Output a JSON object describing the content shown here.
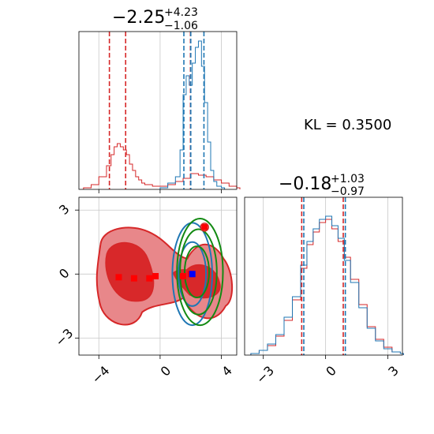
{
  "colors": {
    "red": "#d62728",
    "blue": "#1f77b4",
    "green": "#138a13",
    "red_fill": "#e8878a",
    "red_dark": "#d8282a",
    "grid": "#c8c8c8"
  },
  "chart_data": [
    {
      "type": "histogram",
      "panel": "top-left",
      "title_main": "−2.25",
      "title_sup": "+4.23",
      "title_sub": "−1.06",
      "xlim": [
        -5.3,
        5.0
      ],
      "quantiles": {
        "red": [
          -3.31,
          -2.25,
          1.98
        ],
        "blue": [
          1.55,
          2.0,
          2.86
        ]
      },
      "series": [
        {
          "color": "red",
          "x": [
            -5.0,
            -4.5,
            -4.0,
            -3.5,
            -3.2,
            -3.0,
            -2.8,
            -2.6,
            -2.4,
            -2.2,
            -2.0,
            -1.8,
            -1.6,
            -1.4,
            -1.2,
            -1.0,
            -0.5,
            0.0,
            0.5,
            1.0,
            1.5,
            2.0,
            2.5,
            3.0,
            3.5,
            4.0,
            4.5,
            5.0
          ],
          "y": [
            0.01,
            0.03,
            0.08,
            0.15,
            0.22,
            0.27,
            0.29,
            0.27,
            0.25,
            0.22,
            0.16,
            0.12,
            0.08,
            0.06,
            0.04,
            0.03,
            0.02,
            0.02,
            0.03,
            0.05,
            0.07,
            0.1,
            0.09,
            0.08,
            0.06,
            0.04,
            0.02,
            0.01
          ]
        },
        {
          "color": "blue",
          "x": [
            0.0,
            0.5,
            1.0,
            1.3,
            1.5,
            1.7,
            1.9,
            2.1,
            2.3,
            2.5,
            2.7,
            2.9,
            3.1,
            3.3,
            3.5,
            3.7,
            4.0
          ],
          "y": [
            0.01,
            0.04,
            0.08,
            0.25,
            0.6,
            0.72,
            0.66,
            0.8,
            0.9,
            0.94,
            0.78,
            0.55,
            0.3,
            0.12,
            0.05,
            0.02,
            0.01
          ]
        }
      ]
    },
    {
      "type": "scatter",
      "panel": "bottom-left",
      "xlim": [
        -5.3,
        5.0
      ],
      "ylim": [
        -3.8,
        3.6
      ],
      "xticks": [
        "−4",
        "0",
        "4"
      ],
      "yticks": [
        "3",
        "0",
        "−3"
      ],
      "red_markers": [
        [
          -2.7,
          -0.15
        ],
        [
          -1.7,
          -0.2
        ],
        [
          -0.7,
          -0.2
        ],
        [
          -0.3,
          -0.1
        ],
        [
          1.5,
          -0.1
        ],
        [
          2.0,
          0.0
        ],
        [
          2.9,
          2.2
        ]
      ],
      "blue_marker": [
        2.1,
        0.0
      ],
      "red_region": {
        "x": [
          -4.2,
          4.8
        ],
        "y": [
          -2.6,
          2.2
        ]
      },
      "green_ellipses": [
        {
          "cx": 2.6,
          "cy": 0.1,
          "rx": 1.5,
          "ry": 2.5
        },
        {
          "cx": 2.5,
          "cy": 0.1,
          "rx": 1.2,
          "ry": 2.0
        },
        {
          "cx": 2.4,
          "cy": 0.1,
          "rx": 0.8,
          "ry": 1.2
        }
      ],
      "blue_contours": [
        {
          "cx": 2.1,
          "cy": 0.0,
          "rx": 1.3,
          "ry": 2.4
        },
        {
          "cx": 2.1,
          "cy": 0.0,
          "rx": 0.9,
          "ry": 1.5
        }
      ]
    },
    {
      "type": "histogram",
      "panel": "bottom-right",
      "title_main": "−0.18",
      "title_sup": "+1.03",
      "title_sub": "−0.97",
      "xlim": [
        -3.9,
        3.7
      ],
      "xticks": [
        "−3",
        "0",
        "3"
      ],
      "quantiles": {
        "red": [
          -1.15,
          0.85
        ],
        "blue": [
          -1.05,
          0.95
        ]
      },
      "series": [
        {
          "color": "red",
          "x": [
            -3.6,
            -3.2,
            -2.8,
            -2.4,
            -2.0,
            -1.6,
            -1.2,
            -0.9,
            -0.6,
            -0.3,
            0.0,
            0.3,
            0.6,
            0.9,
            1.2,
            1.6,
            2.0,
            2.4,
            2.8,
            3.2,
            3.6
          ],
          "y": [
            0.01,
            0.03,
            0.06,
            0.12,
            0.22,
            0.35,
            0.55,
            0.7,
            0.78,
            0.84,
            0.86,
            0.8,
            0.72,
            0.62,
            0.48,
            0.32,
            0.18,
            0.1,
            0.05,
            0.02,
            0.01
          ]
        },
        {
          "color": "blue",
          "x": [
            -3.6,
            -3.2,
            -2.8,
            -2.4,
            -2.0,
            -1.6,
            -1.2,
            -0.9,
            -0.6,
            -0.3,
            0.0,
            0.3,
            0.6,
            0.9,
            1.2,
            1.6,
            2.0,
            2.4,
            2.8,
            3.2,
            3.6
          ],
          "y": [
            0.01,
            0.03,
            0.07,
            0.13,
            0.24,
            0.37,
            0.57,
            0.72,
            0.8,
            0.86,
            0.88,
            0.82,
            0.74,
            0.6,
            0.46,
            0.3,
            0.17,
            0.09,
            0.04,
            0.02,
            0.01
          ]
        }
      ]
    }
  ],
  "annotation": "KL = 0.3500"
}
